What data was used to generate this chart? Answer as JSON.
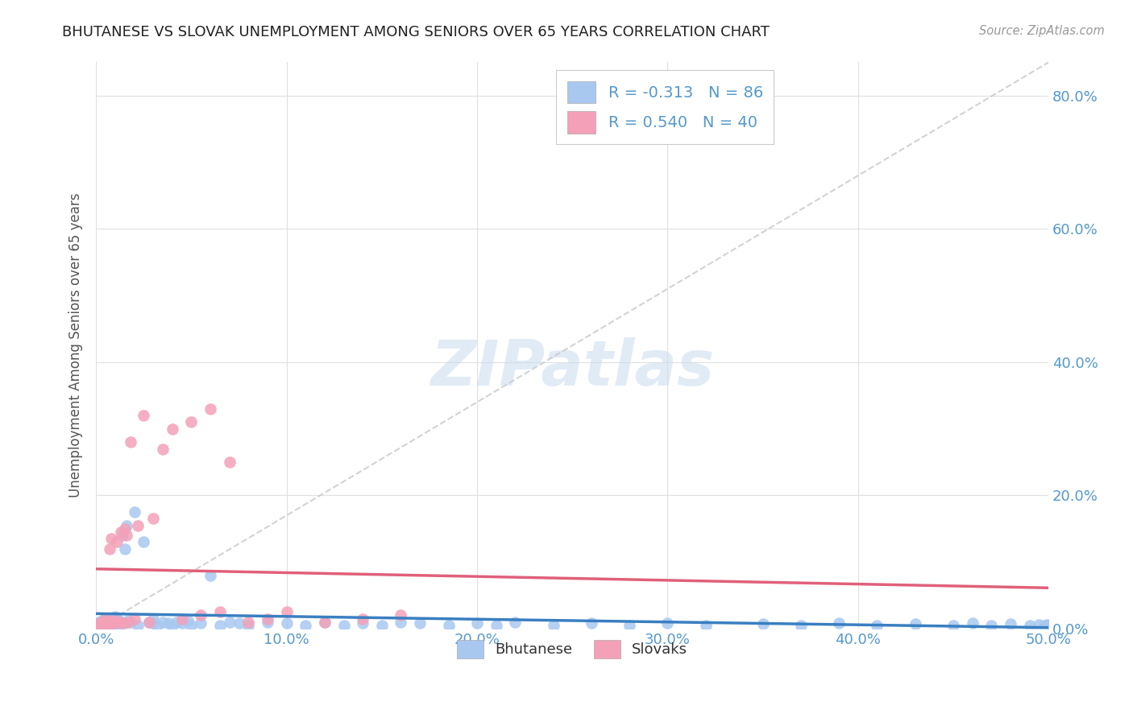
{
  "title": "BHUTANESE VS SLOVAK UNEMPLOYMENT AMONG SENIORS OVER 65 YEARS CORRELATION CHART",
  "source": "Source: ZipAtlas.com",
  "ylabel": "Unemployment Among Seniors over 65 years",
  "xlim": [
    0.0,
    0.5
  ],
  "ylim": [
    0.0,
    0.85
  ],
  "xticks": [
    0.0,
    0.1,
    0.2,
    0.3,
    0.4,
    0.5
  ],
  "yticks": [
    0.0,
    0.2,
    0.4,
    0.6,
    0.8
  ],
  "xticklabels": [
    "0.0%",
    "10.0%",
    "20.0%",
    "30.0%",
    "40.0%",
    "50.0%"
  ],
  "yticklabels": [
    "0.0%",
    "20.0%",
    "40.0%",
    "60.0%",
    "80.0%"
  ],
  "bhutanese_R": -0.313,
  "bhutanese_N": 86,
  "slovak_R": 0.54,
  "slovak_N": 40,
  "bhutanese_color": "#A8C8F0",
  "slovak_color": "#F4A0B8",
  "bhutanese_line_color": "#3A7FC1",
  "slovak_line_color": "#E0607A",
  "diagonal_color": "#C8C8C8",
  "background_color": "#FFFFFF",
  "grid_color": "#E0E0E0",
  "title_color": "#222222",
  "axis_label_color": "#555555",
  "tick_color": "#5599CC",
  "bhutanese_legend": "Bhutanese",
  "slovak_legend": "Slovaks",
  "bhutanese_x": [
    0.001,
    0.002,
    0.002,
    0.003,
    0.003,
    0.004,
    0.004,
    0.005,
    0.005,
    0.005,
    0.006,
    0.006,
    0.007,
    0.007,
    0.008,
    0.008,
    0.009,
    0.009,
    0.01,
    0.01,
    0.01,
    0.011,
    0.012,
    0.012,
    0.013,
    0.014,
    0.015,
    0.015,
    0.016,
    0.017,
    0.018,
    0.02,
    0.022,
    0.025,
    0.028,
    0.03,
    0.03,
    0.032,
    0.035,
    0.038,
    0.04,
    0.042,
    0.045,
    0.048,
    0.05,
    0.055,
    0.06,
    0.065,
    0.07,
    0.075,
    0.08,
    0.09,
    0.1,
    0.11,
    0.12,
    0.13,
    0.14,
    0.15,
    0.16,
    0.17,
    0.185,
    0.2,
    0.21,
    0.22,
    0.24,
    0.26,
    0.28,
    0.3,
    0.32,
    0.35,
    0.37,
    0.39,
    0.41,
    0.43,
    0.45,
    0.46,
    0.47,
    0.48,
    0.49,
    0.495,
    0.498,
    0.499,
    0.5,
    0.5,
    0.5,
    0.5
  ],
  "bhutanese_y": [
    0.008,
    0.005,
    0.01,
    0.006,
    0.012,
    0.005,
    0.008,
    0.01,
    0.005,
    0.015,
    0.008,
    0.012,
    0.005,
    0.01,
    0.008,
    0.015,
    0.006,
    0.012,
    0.005,
    0.01,
    0.018,
    0.008,
    0.005,
    0.012,
    0.01,
    0.14,
    0.12,
    0.008,
    0.155,
    0.012,
    0.01,
    0.175,
    0.005,
    0.13,
    0.01,
    0.008,
    0.015,
    0.005,
    0.01,
    0.008,
    0.005,
    0.01,
    0.008,
    0.012,
    0.005,
    0.008,
    0.08,
    0.005,
    0.01,
    0.008,
    0.005,
    0.01,
    0.008,
    0.005,
    0.01,
    0.005,
    0.008,
    0.005,
    0.01,
    0.008,
    0.005,
    0.008,
    0.005,
    0.01,
    0.005,
    0.008,
    0.005,
    0.008,
    0.005,
    0.007,
    0.005,
    0.008,
    0.005,
    0.007,
    0.005,
    0.008,
    0.005,
    0.007,
    0.005,
    0.006,
    0.005,
    0.006,
    0.005,
    0.005,
    0.005,
    0.005
  ],
  "slovak_x": [
    0.001,
    0.002,
    0.003,
    0.004,
    0.005,
    0.005,
    0.006,
    0.007,
    0.007,
    0.008,
    0.008,
    0.009,
    0.01,
    0.011,
    0.012,
    0.013,
    0.014,
    0.015,
    0.016,
    0.017,
    0.018,
    0.02,
    0.022,
    0.025,
    0.028,
    0.03,
    0.035,
    0.04,
    0.045,
    0.05,
    0.055,
    0.06,
    0.065,
    0.07,
    0.08,
    0.09,
    0.1,
    0.12,
    0.14,
    0.16
  ],
  "slovak_y": [
    0.005,
    0.008,
    0.01,
    0.005,
    0.015,
    0.008,
    0.012,
    0.005,
    0.12,
    0.01,
    0.135,
    0.008,
    0.012,
    0.13,
    0.01,
    0.145,
    0.008,
    0.15,
    0.14,
    0.01,
    0.28,
    0.015,
    0.155,
    0.32,
    0.01,
    0.165,
    0.27,
    0.3,
    0.015,
    0.31,
    0.02,
    0.33,
    0.025,
    0.25,
    0.01,
    0.015,
    0.025,
    0.01,
    0.015,
    0.02
  ]
}
